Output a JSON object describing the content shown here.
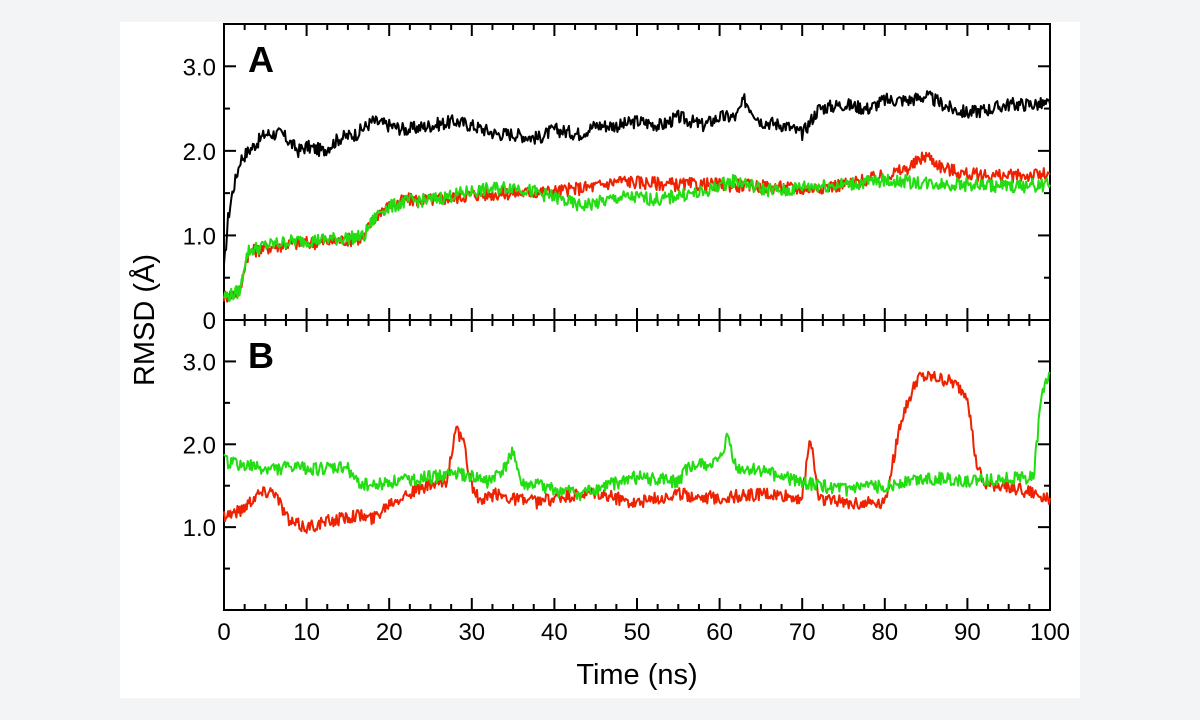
{
  "chart_data": [
    {
      "type": "line",
      "panel_label": "A",
      "xlabel": "",
      "ylabel": "",
      "xlim": [
        0,
        100
      ],
      "ylim": [
        0,
        3.5
      ],
      "y_tick_labels": [
        "0",
        "1.0",
        "2.0",
        "3.0"
      ],
      "y_ticks": [
        0,
        1,
        2,
        3
      ],
      "series": [
        {
          "color": "#000000",
          "x": [
            0,
            0.5,
            1,
            1.5,
            2,
            3,
            4,
            5,
            7,
            9,
            10,
            12,
            14,
            16,
            18,
            20,
            22,
            25,
            28,
            30,
            33,
            35,
            38,
            40,
            43,
            45,
            48,
            50,
            53,
            55,
            58,
            60,
            62,
            63,
            65,
            68,
            70,
            72,
            75,
            78,
            80,
            83,
            85,
            88,
            90,
            93,
            95,
            98,
            100
          ],
          "y": [
            0.6,
            1.2,
            1.5,
            1.7,
            1.9,
            2.0,
            2.1,
            2.2,
            2.2,
            2.0,
            2.05,
            2.0,
            2.15,
            2.2,
            2.35,
            2.3,
            2.25,
            2.3,
            2.35,
            2.3,
            2.2,
            2.2,
            2.15,
            2.25,
            2.2,
            2.3,
            2.3,
            2.35,
            2.3,
            2.4,
            2.3,
            2.4,
            2.4,
            2.6,
            2.35,
            2.3,
            2.2,
            2.5,
            2.55,
            2.5,
            2.6,
            2.6,
            2.65,
            2.5,
            2.45,
            2.5,
            2.55,
            2.55,
            2.55
          ]
        },
        {
          "color": "#ee2200",
          "x": [
            0,
            1,
            2,
            2.5,
            3,
            5,
            8,
            12,
            15,
            17,
            17.5,
            19,
            22,
            25,
            28,
            30,
            35,
            40,
            45,
            48,
            50,
            55,
            60,
            65,
            70,
            75,
            80,
            83,
            85,
            87,
            90,
            95,
            100
          ],
          "y": [
            0.28,
            0.3,
            0.35,
            0.65,
            0.8,
            0.85,
            0.9,
            0.92,
            0.95,
            0.97,
            1.1,
            1.3,
            1.42,
            1.42,
            1.45,
            1.48,
            1.5,
            1.52,
            1.58,
            1.65,
            1.63,
            1.6,
            1.6,
            1.58,
            1.55,
            1.6,
            1.7,
            1.8,
            1.95,
            1.8,
            1.72,
            1.7,
            1.72
          ]
        },
        {
          "color": "#22dd11",
          "x": [
            0,
            1,
            2,
            2.5,
            3,
            5,
            8,
            12,
            15,
            17,
            17.5,
            19,
            22,
            25,
            28,
            30,
            35,
            40,
            43,
            45,
            48,
            50,
            53,
            55,
            58,
            60,
            62,
            65,
            68,
            70,
            75,
            80,
            85,
            90,
            95,
            100
          ],
          "y": [
            0.28,
            0.3,
            0.35,
            0.68,
            0.82,
            0.88,
            0.93,
            0.95,
            0.97,
            0.99,
            1.1,
            1.3,
            1.4,
            1.42,
            1.48,
            1.52,
            1.58,
            1.45,
            1.35,
            1.38,
            1.45,
            1.45,
            1.42,
            1.48,
            1.5,
            1.6,
            1.65,
            1.55,
            1.52,
            1.58,
            1.6,
            1.65,
            1.62,
            1.6,
            1.58,
            1.6
          ]
        }
      ]
    },
    {
      "type": "line",
      "panel_label": "B",
      "xlabel": "Time (ns)",
      "ylabel": "RMSD (Å)",
      "xlim": [
        0,
        100
      ],
      "ylim": [
        0,
        3.5
      ],
      "x_tick_labels": [
        "0",
        "10",
        "20",
        "30",
        "40",
        "50",
        "60",
        "70",
        "80",
        "90",
        "100"
      ],
      "x_ticks": [
        0,
        10,
        20,
        30,
        40,
        50,
        60,
        70,
        80,
        90,
        100
      ],
      "y_tick_labels": [
        "1.0",
        "2.0",
        "3.0"
      ],
      "y_ticks": [
        1,
        2,
        3
      ],
      "series": [
        {
          "color": "#ee2200",
          "x": [
            0,
            2,
            4,
            6,
            8,
            10,
            12,
            14,
            16,
            18,
            20,
            22,
            25,
            27,
            28,
            29,
            30,
            31,
            33,
            35,
            38,
            40,
            45,
            50,
            55,
            60,
            65,
            70,
            71,
            72,
            75,
            80,
            82,
            84,
            86,
            88,
            90,
            91,
            92,
            95,
            98,
            100
          ],
          "y": [
            1.15,
            1.2,
            1.4,
            1.45,
            1.05,
            1.0,
            1.05,
            1.1,
            1.15,
            1.1,
            1.3,
            1.4,
            1.5,
            1.55,
            2.2,
            2.0,
            1.5,
            1.3,
            1.4,
            1.35,
            1.3,
            1.35,
            1.4,
            1.3,
            1.4,
            1.35,
            1.4,
            1.35,
            2.1,
            1.35,
            1.3,
            1.3,
            2.3,
            2.8,
            2.8,
            2.75,
            2.6,
            1.8,
            1.5,
            1.5,
            1.4,
            1.35
          ]
        },
        {
          "color": "#22dd11",
          "x": [
            0,
            2,
            5,
            8,
            12,
            15,
            16,
            18,
            20,
            25,
            28,
            30,
            32,
            34,
            35,
            36,
            38,
            40,
            43,
            45,
            48,
            50,
            55,
            56,
            58,
            60,
            61,
            62,
            65,
            68,
            70,
            72,
            75,
            80,
            85,
            90,
            95,
            98,
            99,
            100
          ],
          "y": [
            1.8,
            1.75,
            1.7,
            1.72,
            1.7,
            1.72,
            1.55,
            1.5,
            1.55,
            1.6,
            1.65,
            1.6,
            1.55,
            1.7,
            1.95,
            1.5,
            1.5,
            1.45,
            1.4,
            1.45,
            1.55,
            1.6,
            1.55,
            1.7,
            1.75,
            1.78,
            2.1,
            1.7,
            1.68,
            1.6,
            1.55,
            1.5,
            1.45,
            1.5,
            1.6,
            1.55,
            1.6,
            1.6,
            2.6,
            2.85
          ]
        }
      ]
    }
  ]
}
